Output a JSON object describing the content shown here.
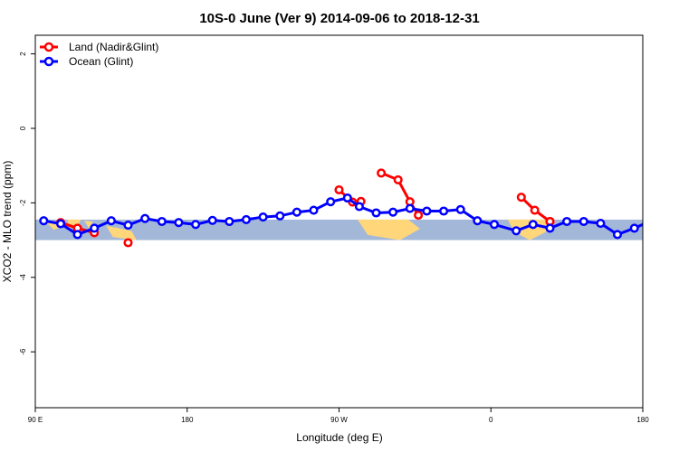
{
  "chart_data": {
    "type": "line",
    "title": "10S-0 June (Ver 9)   2014-09-06 to 2018-12-31",
    "xlabel": "Longitude (deg E)",
    "ylabel": "XCO2 - MLO trend (ppm)",
    "xlim": [
      90,
      450
    ],
    "ylim": [
      -7.5,
      2.5
    ],
    "x_ticks": [
      {
        "value": 90,
        "label": "90 E"
      },
      {
        "value": 180,
        "label": "180"
      },
      {
        "value": 270,
        "label": "90 W"
      },
      {
        "value": 360,
        "label": "0"
      },
      {
        "value": 450,
        "label": "180"
      }
    ],
    "y_ticks": [
      {
        "value": 2,
        "label": "2"
      },
      {
        "value": 0,
        "label": "0"
      },
      {
        "value": -2,
        "label": "-2"
      },
      {
        "value": -4,
        "label": "-4"
      },
      {
        "value": -6,
        "label": "-6"
      }
    ],
    "map_band": {
      "lat_range": "10S-0",
      "ymin": -3.0,
      "ymax": -2.45,
      "ocean_color": "#a3b8d8",
      "land_color": "#ffd67a"
    },
    "series": [
      {
        "name": "Land (Nadir&Glint)",
        "color": "#ff0000",
        "segments": [
          {
            "x": [
              105,
              115,
              125
            ],
            "y": [
              -2.53,
              -2.68,
              -2.8
            ]
          },
          {
            "x": [
              145
            ],
            "y": [
              -3.07
            ]
          },
          {
            "x": [
              270,
              278,
              283
            ],
            "y": [
              -1.65,
              -1.98,
              -1.96
            ]
          },
          {
            "x": [
              295,
              305,
              312,
              317
            ],
            "y": [
              -1.2,
              -1.38,
              -1.97,
              -2.33
            ]
          },
          {
            "x": [
              378,
              386,
              395
            ],
            "y": [
              -1.85,
              -2.2,
              -2.5
            ]
          },
          {
            "x": [
              395
            ],
            "y": [
              -2.5
            ]
          },
          {
            "x": [
              462,
              470,
              478
            ],
            "y": [
              -2.53,
              -2.68,
              -2.8
            ]
          },
          {
            "x": [
              500
            ],
            "y": [
              -3.07
            ]
          }
        ]
      },
      {
        "name": "Ocean (Glint)",
        "color": "#0000ff",
        "segments": [
          {
            "x": [
              95,
              105,
              115,
              125,
              135,
              145,
              155,
              165,
              175,
              185,
              195,
              205,
              215,
              225,
              235,
              245,
              255,
              265,
              275,
              282,
              292,
              302,
              312,
              322,
              332,
              342,
              352,
              362,
              375,
              385,
              395,
              405,
              415,
              425,
              435,
              445,
              455,
              465,
              475,
              485,
              495,
              505,
              515,
              525,
              535,
              545,
              555,
              565,
              575,
              585
            ],
            "y": [
              -2.48,
              -2.56,
              -2.85,
              -2.68,
              -2.48,
              -2.6,
              -2.42,
              -2.5,
              -2.53,
              -2.58,
              -2.47,
              -2.5,
              -2.45,
              -2.38,
              -2.35,
              -2.25,
              -2.2,
              -1.97,
              -1.87,
              -2.1,
              -2.27,
              -2.25,
              -2.15,
              -2.22,
              -2.22,
              -2.18,
              -2.48,
              -2.58,
              -2.75,
              -2.58,
              -2.68,
              -2.5,
              -2.5,
              -2.55,
              -2.85,
              -2.68,
              -2.48,
              -2.6,
              -2.42,
              -2.5,
              -2.53,
              -2.58,
              -2.47,
              -2.5,
              -2.45,
              -2.38,
              -2.35,
              -2.25,
              -2.2,
              -1.97
            ]
          }
        ]
      }
    ],
    "legend": {
      "position": "top-left"
    }
  }
}
